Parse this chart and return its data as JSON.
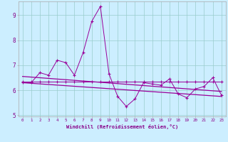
{
  "x": [
    0,
    1,
    2,
    3,
    4,
    5,
    6,
    7,
    8,
    9,
    10,
    11,
    12,
    13,
    14,
    15,
    16,
    17,
    18,
    19,
    20,
    21,
    22,
    23
  ],
  "y_main": [
    6.3,
    6.3,
    6.7,
    6.6,
    7.2,
    7.1,
    6.6,
    7.5,
    8.75,
    9.35,
    6.65,
    5.75,
    5.35,
    5.65,
    6.3,
    6.25,
    6.2,
    6.45,
    5.85,
    5.7,
    6.05,
    6.15,
    6.5,
    5.8
  ],
  "y_upper": [
    6.35,
    6.35,
    6.35,
    6.35,
    6.35,
    6.35,
    6.35,
    6.35,
    6.35,
    6.35,
    6.35,
    6.35,
    6.35,
    6.35,
    6.35,
    6.35,
    6.35,
    6.35,
    6.35,
    6.35,
    6.35,
    6.35,
    6.35,
    6.35
  ],
  "trend1_x": [
    0,
    23
  ],
  "trend1_y": [
    6.55,
    5.95
  ],
  "trend2_x": [
    0,
    23
  ],
  "trend2_y": [
    6.3,
    5.75
  ],
  "color_main": "#990099",
  "bg_color": "#cceeff",
  "grid_color": "#99cccc",
  "xlabel": "Windchill (Refroidissement éolien,°C)",
  "xlim": [
    -0.5,
    23.5
  ],
  "ylim": [
    4.95,
    9.55
  ],
  "yticks": [
    5,
    6,
    7,
    8,
    9
  ],
  "xticks": [
    0,
    1,
    2,
    3,
    4,
    5,
    6,
    7,
    8,
    9,
    10,
    11,
    12,
    13,
    14,
    15,
    16,
    17,
    18,
    19,
    20,
    21,
    22,
    23
  ]
}
